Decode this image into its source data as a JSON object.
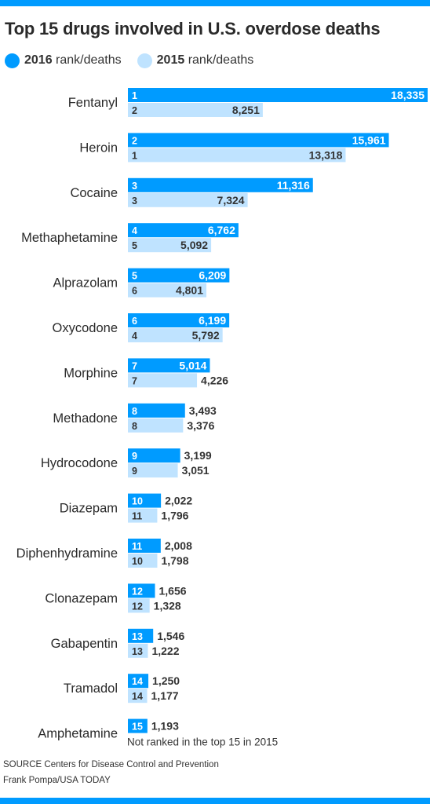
{
  "title": "Top 15 drugs involved in U.S. overdose deaths",
  "legend": {
    "items": [
      {
        "bold": "2016",
        "text": " rank/deaths",
        "color": "#009bff"
      },
      {
        "bold": "2015",
        "text": " rank/deaths",
        "color": "#bfe3ff"
      }
    ]
  },
  "footer": {
    "source": "SOURCE Centers for Disease Control and Prevention",
    "credit": "Frank Pompa/USA TODAY"
  },
  "chart_data": {
    "type": "bar",
    "orientation": "horizontal",
    "categories": [
      "Fentanyl",
      "Heroin",
      "Cocaine",
      "Methaphetamine",
      "Alprazolam",
      "Oxycodone",
      "Morphine",
      "Methadone",
      "Hydrocodone",
      "Diazepam",
      "Diphenhydramine",
      "Clonazepam",
      "Gabapentin",
      "Tramadol",
      "Amphetamine"
    ],
    "series": [
      {
        "name": "2016 rank/deaths",
        "color": "#009bff",
        "ranks": [
          "1",
          "2",
          "3",
          "4",
          "5",
          "6",
          "7",
          "8",
          "9",
          "10",
          "11",
          "12",
          "13",
          "14",
          "15"
        ],
        "values": [
          18335,
          15961,
          11316,
          6762,
          6209,
          6199,
          5014,
          3493,
          3199,
          2022,
          2008,
          1656,
          1546,
          1250,
          1193
        ],
        "labels": [
          "18,335",
          "15,961",
          "11,316",
          "6,762",
          "6,209",
          "6,199",
          "5,014",
          "3,493",
          "3,199",
          "2,022",
          "2,008",
          "1,656",
          "1,546",
          "1,250",
          "1,193"
        ]
      },
      {
        "name": "2015 rank/deaths",
        "color": "#bfe3ff",
        "ranks": [
          "2",
          "1",
          "3",
          "5",
          "6",
          "4",
          "7",
          "8",
          "9",
          "11",
          "10",
          "12",
          "13",
          "14",
          null
        ],
        "values": [
          8251,
          13318,
          7324,
          5092,
          4801,
          5792,
          4226,
          3376,
          3051,
          1796,
          1798,
          1328,
          1222,
          1177,
          null
        ],
        "labels": [
          "8,251",
          "13,318",
          "7,324",
          "5,092",
          "4,801",
          "5,792",
          "4,226",
          "3,376",
          "3,051",
          "1,796",
          "1,798",
          "1,328",
          "1,222",
          "1,177",
          null
        ]
      }
    ],
    "annotations": [
      {
        "category": "Amphetamine",
        "text": "Not ranked in the top 15 in 2015"
      }
    ],
    "xlim": [
      0,
      18335
    ]
  }
}
